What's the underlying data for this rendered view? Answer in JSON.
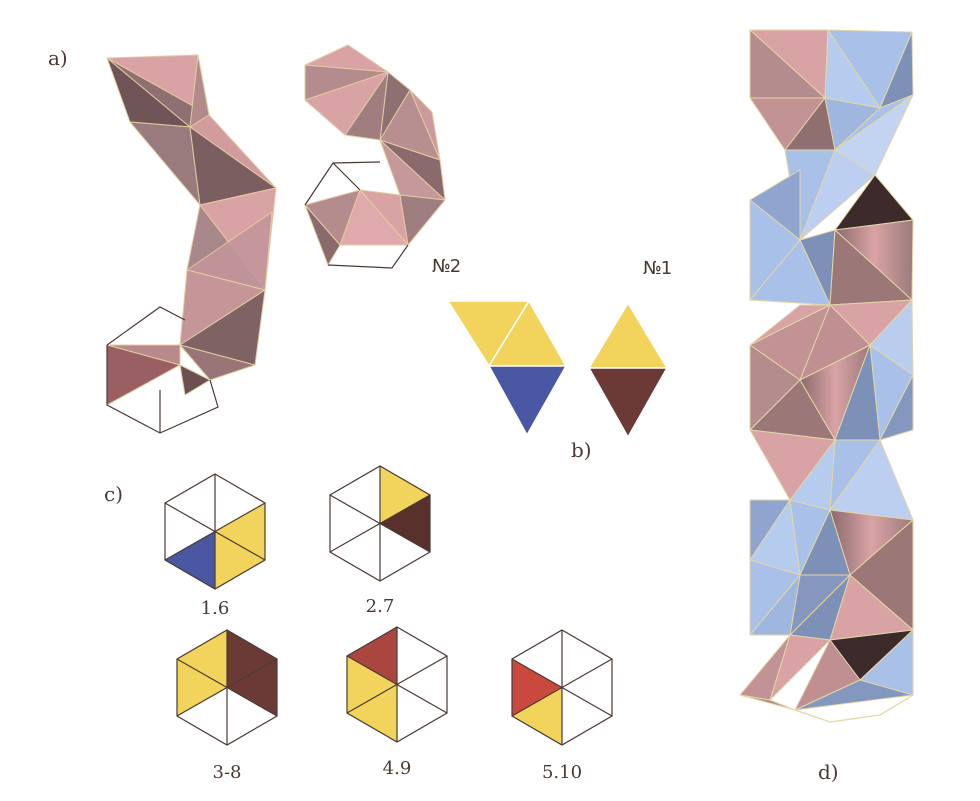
{
  "labels": {
    "a": "a)",
    "b": "b)",
    "c": "c)",
    "d": "d)"
  },
  "modules": {
    "no2": "№2",
    "no1": "№1"
  },
  "hex_captions": [
    "1.6",
    "2.7",
    "3-8",
    "4.9",
    "5.10"
  ],
  "colors": {
    "pink": "#d9a3a5",
    "pink_dark": "#8f6f70",
    "pink_mid": "#bf8f91",
    "blue": "#a9c1e8",
    "blue_dark": "#7d90b8",
    "yellow": "#f2d45c",
    "navy": "#4a57a3",
    "maroon": "#6b3a36",
    "red_brown": "#a8463f",
    "red": "#c9493f",
    "edge": "#e7d9a8",
    "outline": "#4a3a33"
  }
}
